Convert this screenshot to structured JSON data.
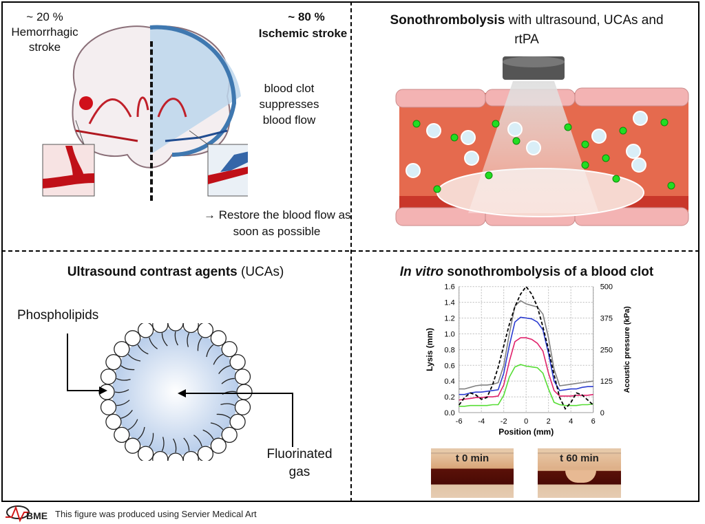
{
  "stroke": {
    "hemorrhagic_pct": "~ 20 %",
    "hemorrhagic_label_1": "Hemorrhagic",
    "hemorrhagic_label_2": "stroke",
    "ischemic_pct": "~ 80 %",
    "ischemic_label": "Ischemic stroke",
    "clot_note_1": "blood clot",
    "clot_note_2": "suppresses",
    "clot_note_3": "blood flow",
    "restore_1": "→ Restore the blood flow as",
    "restore_2": "soon as possible"
  },
  "sonothrombolysis": {
    "title_bold": "Sonothrombolysis",
    "title_rest": " with ultrasound, UCAs and",
    "title_line2": "rtPA"
  },
  "ucas": {
    "title_bold": "Ultrasound contrast agents",
    "title_rest": " (UCAs)",
    "label_shell": "Phospholipids",
    "label_gas_1": "Fluorinated",
    "label_gas_2": "gas"
  },
  "invitro": {
    "title_italic": "In vitro",
    "title_rest": " sonothrombolysis of a blood clot",
    "photo_before": "t 0 min",
    "photo_after": "t 60 min"
  },
  "footer": {
    "credit": "This figure was produced using Servier Medical Art",
    "logo_text": "BME"
  },
  "chart_data": {
    "type": "line",
    "xlabel": "Position (mm)",
    "ylabel": "Lysis (mm)",
    "y2label": "Acoustic pressure (kPa)",
    "xlim": [
      -6,
      6
    ],
    "ylim": [
      0,
      1.6
    ],
    "y2lim": [
      0,
      500
    ],
    "xticks": [
      "-6",
      "-4",
      "-2",
      "0",
      "2",
      "4",
      "6"
    ],
    "yticks": [
      "0.0",
      "0.2",
      "0.4",
      "0.6",
      "0.8",
      "1.0",
      "1.2",
      "1.4",
      "1.6"
    ],
    "y2ticks": [
      "0",
      "125",
      "250",
      "375",
      "500"
    ],
    "grid": true,
    "x": [
      -6,
      -5.5,
      -5,
      -4.5,
      -4,
      -3.5,
      -3,
      -2.5,
      -2,
      -1.5,
      -1,
      -0.5,
      0,
      0.5,
      1,
      1.5,
      2,
      2.5,
      3,
      3.5,
      4,
      4.5,
      5,
      5.5,
      6
    ],
    "series": [
      {
        "color": "#808080",
        "axis": "left",
        "values": [
          0.3,
          0.3,
          0.32,
          0.34,
          0.35,
          0.35,
          0.36,
          0.38,
          0.6,
          1.0,
          1.35,
          1.42,
          1.38,
          1.36,
          1.34,
          1.25,
          0.95,
          0.55,
          0.34,
          0.35,
          0.36,
          0.37,
          0.38,
          0.39,
          0.4
        ]
      },
      {
        "color": "#2a3bd0",
        "axis": "left",
        "values": [
          0.23,
          0.23,
          0.25,
          0.26,
          0.26,
          0.27,
          0.28,
          0.29,
          0.5,
          0.85,
          1.15,
          1.21,
          1.2,
          1.19,
          1.15,
          1.05,
          0.75,
          0.4,
          0.28,
          0.29,
          0.3,
          0.3,
          0.32,
          0.33,
          0.33
        ]
      },
      {
        "color": "#e0206a",
        "axis": "left",
        "values": [
          0.16,
          0.17,
          0.18,
          0.19,
          0.19,
          0.2,
          0.2,
          0.21,
          0.35,
          0.65,
          0.9,
          0.95,
          0.95,
          0.93,
          0.88,
          0.78,
          0.5,
          0.28,
          0.21,
          0.21,
          0.21,
          0.22,
          0.22,
          0.22,
          0.23
        ]
      },
      {
        "color": "#55dd33",
        "axis": "left",
        "values": [
          0.08,
          0.08,
          0.09,
          0.09,
          0.09,
          0.09,
          0.1,
          0.1,
          0.22,
          0.45,
          0.58,
          0.61,
          0.59,
          0.58,
          0.57,
          0.5,
          0.3,
          0.13,
          0.1,
          0.09,
          0.09,
          0.09,
          0.1,
          0.1,
          0.11
        ]
      },
      {
        "color": "#000000",
        "axis": "right",
        "dashed": true,
        "values": [
          30,
          60,
          78,
          70,
          53,
          60,
          110,
          180,
          265,
          350,
          420,
          470,
          500,
          470,
          420,
          340,
          250,
          150,
          60,
          15,
          40,
          78,
          70,
          50,
          30
        ]
      }
    ]
  }
}
